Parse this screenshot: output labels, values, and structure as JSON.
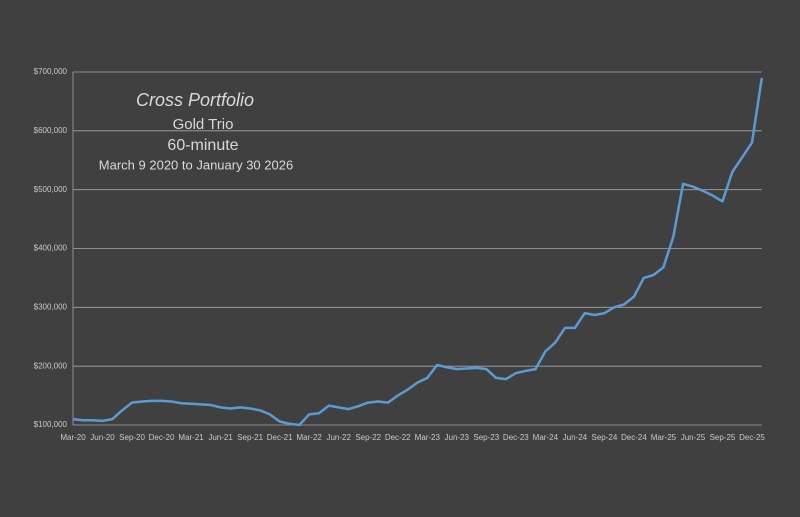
{
  "chart_data": {
    "type": "line",
    "title": "Cross Portfolio",
    "subtitle": [
      "Gold Trio",
      "60-minute",
      "March 9 2020 to January 30 2026"
    ],
    "categories": [
      "Mar-20",
      null,
      null,
      "Jun-20",
      null,
      null,
      "Sep-20",
      null,
      null,
      "Dec-20",
      null,
      null,
      "Mar-21",
      null,
      null,
      "Jun-21",
      null,
      null,
      "Sep-21",
      null,
      null,
      "Dec-21",
      null,
      null,
      "Mar-22",
      null,
      null,
      "Jun-22",
      null,
      null,
      "Sep-22",
      null,
      null,
      "Dec-22",
      null,
      null,
      "Mar-23",
      null,
      null,
      "Jun-23",
      null,
      null,
      "Sep-23",
      null,
      null,
      "Dec-23",
      null,
      null,
      "Mar-24",
      null,
      null,
      "Jun-24",
      null,
      null,
      "Sep-24",
      null,
      null,
      "Dec-24",
      null,
      null,
      "Mar-25",
      null,
      null,
      "Jun-25",
      null,
      null,
      "Sep-25",
      null,
      null,
      "Dec-25",
      null
    ],
    "values": [
      110000,
      108000,
      108000,
      107000,
      110000,
      125000,
      138000,
      140000,
      141000,
      141000,
      140000,
      137000,
      136000,
      135000,
      134000,
      130000,
      128000,
      130000,
      128000,
      125000,
      118000,
      106000,
      102000,
      100000,
      118000,
      120000,
      133000,
      130000,
      127000,
      132000,
      138000,
      140000,
      138000,
      150000,
      160000,
      172000,
      180000,
      202000,
      198000,
      195000,
      196000,
      197000,
      195000,
      180000,
      178000,
      188000,
      192000,
      195000,
      225000,
      240000,
      265000,
      265000,
      290000,
      287000,
      290000,
      300000,
      305000,
      318000,
      350000,
      355000,
      368000,
      420000,
      510000,
      505000,
      498000,
      490000,
      480000,
      530000,
      555000,
      580000,
      690000
    ],
    "color": "#5b9bd5",
    "ylim": [
      100000,
      700000
    ],
    "yticks": [
      {
        "value": 100000,
        "label": "$100,000"
      },
      {
        "value": 200000,
        "label": "$200,000"
      },
      {
        "value": 300000,
        "label": "$300,000"
      },
      {
        "value": 400000,
        "label": "$400,000"
      },
      {
        "value": 500000,
        "label": "$500,000"
      },
      {
        "value": 600000,
        "label": "$600,000"
      },
      {
        "value": 700000,
        "label": "$700,000"
      }
    ],
    "grid": true
  }
}
